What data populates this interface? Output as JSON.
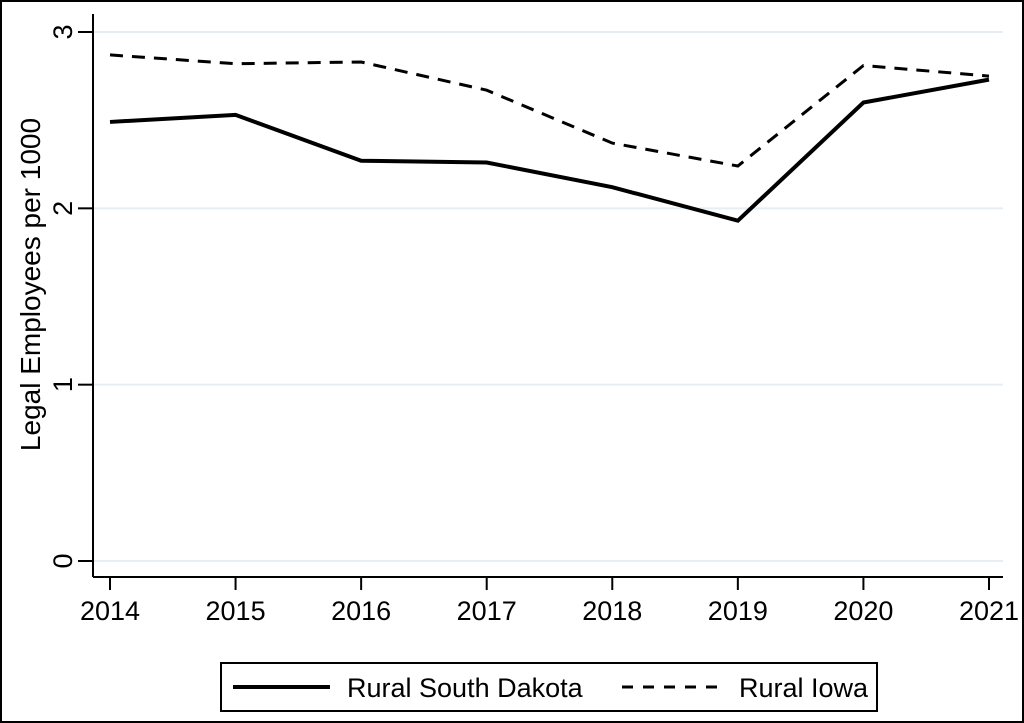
{
  "figure": {
    "background": "#ffffff",
    "border_color": "#000000",
    "text_color": "#000000"
  },
  "chart_data": {
    "type": "line",
    "title": "",
    "xlabel": "",
    "ylabel": "Legal Employees per 1000",
    "x": [
      2014,
      2015,
      2016,
      2017,
      2018,
      2019,
      2020,
      2021
    ],
    "series": [
      {
        "name": "Rural South Dakota",
        "style": "solid",
        "color": "#000000",
        "values": [
          2.49,
          2.53,
          2.27,
          2.26,
          2.12,
          1.93,
          2.6,
          2.73
        ]
      },
      {
        "name": "Rural Iowa",
        "style": "dashed",
        "color": "#000000",
        "values": [
          2.87,
          2.82,
          2.83,
          2.67,
          2.37,
          2.24,
          2.81,
          2.75
        ]
      }
    ],
    "ylim": [
      0,
      3
    ],
    "yticks": [
      0,
      1,
      2,
      3
    ],
    "xticks": [
      2014,
      2015,
      2016,
      2017,
      2018,
      2019,
      2020,
      2021
    ],
    "grid": true,
    "grid_color": "#e6eef4",
    "legend_position": "bottom",
    "legend": [
      "Rural South Dakota",
      "Rural Iowa"
    ]
  }
}
